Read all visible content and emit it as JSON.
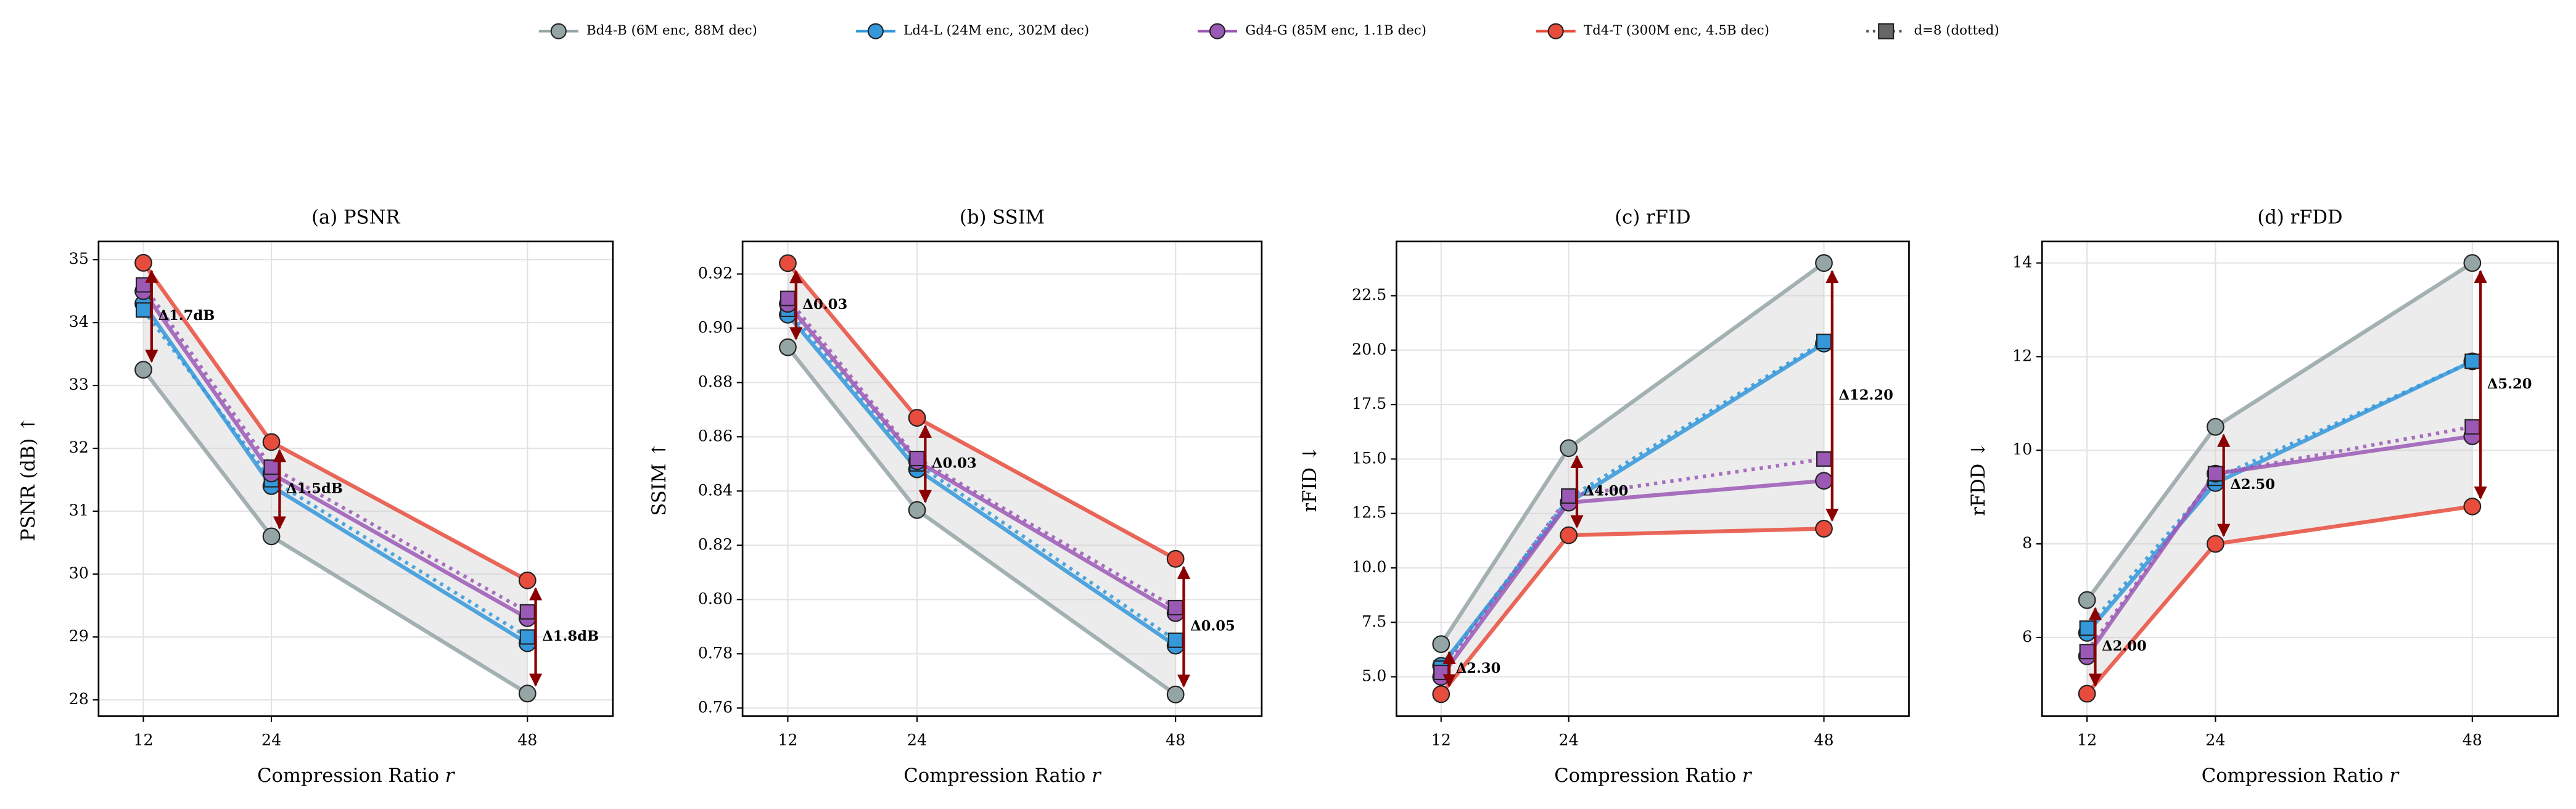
{
  "legend": {
    "dotted": "d=8 (dotted)"
  },
  "chart_data": [
    {
      "type": "line",
      "title": "(a) PSNR",
      "x_label": "Compression Ratio 𝑟",
      "y_label": "PSNR (dB) ↑",
      "x": [
        12,
        24,
        48
      ],
      "xlim": [
        7.8,
        56
      ],
      "xticks": [
        12,
        24,
        48
      ],
      "ylim": [
        27.74,
        35.29
      ],
      "yticks": [
        28,
        29,
        30,
        31,
        32,
        33,
        34,
        35
      ],
      "grid": true,
      "series": [
        {
          "name": "Bd4-B (6M enc, 88M dec)",
          "color": "#95a5a6",
          "values": [
            33.25,
            30.6,
            28.1
          ]
        },
        {
          "name": "Ld4-L (24M enc, 302M dec)",
          "color": "#3498db",
          "values": [
            34.3,
            31.4,
            28.9
          ],
          "d8_values": [
            34.2,
            31.5,
            29.0
          ]
        },
        {
          "name": "Gd4-G (85M enc, 1.1B dec)",
          "color": "#9b59b6",
          "values": [
            34.5,
            31.6,
            29.3
          ],
          "d8_values": [
            34.6,
            31.7,
            29.4
          ]
        },
        {
          "name": "Td4-T (300M enc, 4.5B dec)",
          "color": "#e74c3c",
          "values": [
            34.95,
            32.1,
            29.9
          ]
        }
      ],
      "delta_labels": [
        "Δ1.7dB",
        "Δ1.5dB",
        "Δ1.8dB"
      ]
    },
    {
      "type": "line",
      "title": "(b) SSIM",
      "x_label": "Compression Ratio 𝑟",
      "y_label": "SSIM ↑",
      "x": [
        12,
        24,
        48
      ],
      "xlim": [
        7.8,
        56
      ],
      "xticks": [
        12,
        24,
        48
      ],
      "ylim": [
        0.757,
        0.932
      ],
      "yticks": [
        0.76,
        0.78,
        {
          "value": 0.8,
          "label": "0.80"
        },
        0.82,
        0.84,
        0.86,
        0.88,
        {
          "value": 0.9,
          "label": "0.90"
        },
        0.92
      ],
      "grid": true,
      "series": [
        {
          "name": "Bd4-B (6M enc, 88M dec)",
          "color": "#95a5a6",
          "values": [
            0.893,
            0.833,
            0.765
          ]
        },
        {
          "name": "Ld4-L (24M enc, 302M dec)",
          "color": "#3498db",
          "values": [
            0.905,
            0.848,
            0.783
          ],
          "d8_values": [
            0.907,
            0.85,
            0.785
          ]
        },
        {
          "name": "Gd4-G (85M enc, 1.1B dec)",
          "color": "#9b59b6",
          "values": [
            0.909,
            0.851,
            0.795
          ],
          "d8_values": [
            0.911,
            0.852,
            0.797
          ]
        },
        {
          "name": "Td4-T (300M enc, 4.5B dec)",
          "color": "#e74c3c",
          "values": [
            0.924,
            0.867,
            0.815
          ]
        }
      ],
      "delta_labels": [
        "Δ0.03",
        "Δ0.03",
        "Δ0.05"
      ]
    },
    {
      "type": "line",
      "title": "(c) rFID",
      "x_label": "Compression Ratio 𝑟",
      "y_label": "rFID ↓",
      "x": [
        12,
        24,
        48
      ],
      "xlim": [
        7.8,
        56
      ],
      "xticks": [
        12,
        24,
        48
      ],
      "ylim": [
        3.19,
        24.99
      ],
      "yticks": [
        {
          "value": 5,
          "label": "5.0"
        },
        7.5,
        {
          "value": 10,
          "label": "10.0"
        },
        12.5,
        {
          "value": 15,
          "label": "15.0"
        },
        17.5,
        {
          "value": 20,
          "label": "20.0"
        },
        22.5
      ],
      "grid": true,
      "series": [
        {
          "name": "Bd4-B (6M enc, 88M dec)",
          "color": "#95a5a6",
          "values": [
            6.5,
            15.5,
            24.0
          ]
        },
        {
          "name": "Ld4-L (24M enc, 302M dec)",
          "color": "#3498db",
          "values": [
            5.5,
            13.0,
            20.3
          ],
          "d8_values": [
            5.4,
            13.2,
            20.4
          ]
        },
        {
          "name": "Gd4-G (85M enc, 1.1B dec)",
          "color": "#9b59b6",
          "values": [
            5.0,
            13.0,
            14.0
          ],
          "d8_values": [
            5.2,
            13.3,
            15.0
          ]
        },
        {
          "name": "Td4-T (300M enc, 4.5B dec)",
          "color": "#e74c3c",
          "values": [
            4.2,
            11.5,
            11.8
          ]
        }
      ],
      "delta_labels": [
        "Δ2.30",
        "Δ4.00",
        "Δ12.20"
      ]
    },
    {
      "type": "line",
      "title": "(d) rFDD",
      "x_label": "Compression Ratio 𝑟",
      "y_label": "rFDD ↓",
      "x": [
        12,
        24,
        48
      ],
      "xlim": [
        7.8,
        56
      ],
      "xticks": [
        12,
        24,
        48
      ],
      "ylim": [
        4.32,
        14.46
      ],
      "yticks": [
        6,
        8,
        10,
        12,
        14
      ],
      "grid": true,
      "series": [
        {
          "name": "Bd4-B (6M enc, 88M dec)",
          "color": "#95a5a6",
          "values": [
            6.8,
            10.5,
            14.0
          ]
        },
        {
          "name": "Ld4-L (24M enc, 302M dec)",
          "color": "#3498db",
          "values": [
            6.1,
            9.3,
            11.9
          ],
          "d8_values": [
            6.2,
            9.4,
            11.9
          ]
        },
        {
          "name": "Gd4-G (85M enc, 1.1B dec)",
          "color": "#9b59b6",
          "values": [
            5.6,
            9.5,
            10.3
          ],
          "d8_values": [
            5.7,
            9.5,
            10.5
          ]
        },
        {
          "name": "Td4-T (300M enc, 4.5B dec)",
          "color": "#e74c3c",
          "values": [
            4.8,
            8.0,
            8.8
          ]
        }
      ],
      "delta_labels": [
        "Δ2.00",
        "Δ2.50",
        "Δ5.20"
      ]
    }
  ]
}
